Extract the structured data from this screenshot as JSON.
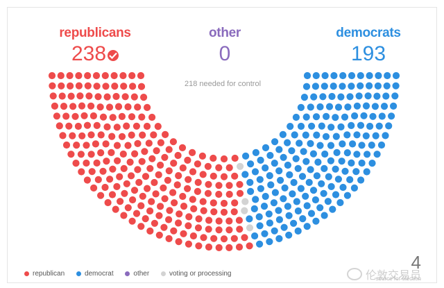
{
  "parties": {
    "republicans": {
      "label": "republicans",
      "count": "238",
      "color": "#ee4b4b"
    },
    "other": {
      "label": "other",
      "count": "0",
      "color": "#8a6bbd"
    },
    "democrats": {
      "label": "democrats",
      "count": "193",
      "color": "#2d8fe0"
    }
  },
  "needed_text": "218 needed for control",
  "legend": [
    {
      "label": "republican",
      "color": "#ee4b4b"
    },
    {
      "label": "democrat",
      "color": "#2d8fe0"
    },
    {
      "label": "other",
      "color": "#8a6bbd"
    },
    {
      "label": "voting or processing",
      "color": "#d3d3d3"
    }
  ],
  "page_number": "4",
  "watermark": {
    "text": "伦敦交易员",
    "subtext": "source for election"
  },
  "chart_data": {
    "type": "parliament",
    "title": "",
    "total_seats": 435,
    "series": [
      {
        "name": "republican",
        "values": [
          238
        ],
        "color": "#ee4b4b"
      },
      {
        "name": "voting or processing",
        "values": [
          4
        ],
        "color": "#d3d3d3"
      },
      {
        "name": "democrat",
        "values": [
          193
        ],
        "color": "#2d8fe0"
      }
    ],
    "majority_threshold": 218
  }
}
